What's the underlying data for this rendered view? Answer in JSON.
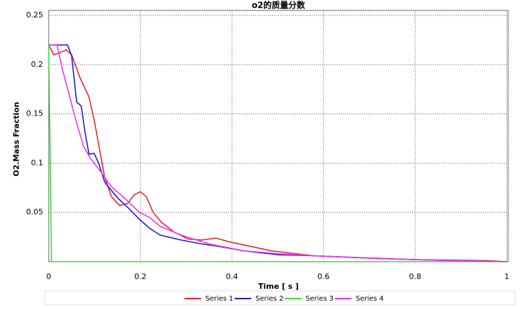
{
  "chart_data": {
    "type": "line",
    "title": "o2的质量分数",
    "x_label": "Time [ s ]",
    "y_label": "O2.Mass Fraction",
    "xlim": [
      0,
      1
    ],
    "xticks": [
      0,
      0.2,
      0.4,
      0.6,
      0.8,
      1
    ],
    "ylim": [
      0,
      0.255
    ],
    "yticks": [
      0.05,
      0.1,
      0.15,
      0.2,
      0.25
    ],
    "grid": true,
    "legend": "bottom",
    "series": [
      {
        "name": "Series 1",
        "color": "#e3262a",
        "x": [
          0,
          0.011,
          0.023,
          0.038,
          0.05,
          0.068,
          0.088,
          0.1,
          0.111,
          0.122,
          0.137,
          0.155,
          0.172,
          0.187,
          0.2,
          0.213,
          0.228,
          0.246,
          0.274,
          0.304,
          0.334,
          0.365,
          0.395,
          0.426,
          0.486,
          0.578,
          0.684,
          0.805,
          0.957,
          1
        ],
        "values": [
          0.22,
          0.21,
          0.212,
          0.215,
          0.21,
          0.187,
          0.167,
          0.142,
          0.114,
          0.086,
          0.066,
          0.057,
          0.059,
          0.068,
          0.071,
          0.066,
          0.05,
          0.04,
          0.03,
          0.023,
          0.022,
          0.024,
          0.02,
          0.017,
          0.011,
          0.006,
          0.004,
          0.002,
          0.001,
          0
        ]
      },
      {
        "name": "Series 2",
        "color": "#1c1ad6",
        "x": [
          0,
          0.041,
          0.05,
          0.061,
          0.071,
          0.079,
          0.088,
          0.099,
          0.109,
          0.122,
          0.132,
          0.152,
          0.175,
          0.198,
          0.22,
          0.243,
          0.289,
          0.334,
          0.365,
          0.426,
          0.502,
          0.578,
          0.729,
          0.805,
          1
        ],
        "values": [
          0.22,
          0.22,
          0.209,
          0.162,
          0.158,
          0.132,
          0.109,
          0.11,
          0.1,
          0.081,
          0.075,
          0.064,
          0.054,
          0.043,
          0.034,
          0.027,
          0.022,
          0.018,
          0.016,
          0.011,
          0.007,
          0.006,
          0.003,
          0.002,
          0
        ]
      },
      {
        "name": "Series 3",
        "color": "#33dd33",
        "x": [
          0,
          0.006,
          1
        ],
        "values": [
          0.22,
          0,
          0
        ]
      },
      {
        "name": "Series 4",
        "color": "#ee33ee",
        "x": [
          0,
          0.018,
          0.03,
          0.046,
          0.056,
          0.076,
          0.091,
          0.114,
          0.137,
          0.167,
          0.198,
          0.22,
          0.243,
          0.289,
          0.35,
          0.426,
          0.502,
          0.578,
          0.729,
          0.881,
          1
        ],
        "values": [
          0.22,
          0.22,
          0.195,
          0.167,
          0.149,
          0.117,
          0.105,
          0.091,
          0.076,
          0.064,
          0.05,
          0.045,
          0.036,
          0.027,
          0.018,
          0.011,
          0.008,
          0.006,
          0.003,
          0.001,
          0
        ]
      }
    ]
  }
}
